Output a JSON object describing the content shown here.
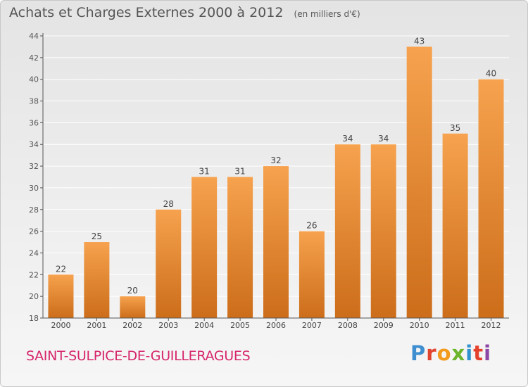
{
  "title": "Achats et Charges Externes 2000 à 2012",
  "unit": "(en milliers d'€)",
  "commune": "SAINT-SULPICE-DE-GUILLERAGUES",
  "brand": "Proxiti",
  "colors": {
    "bar_light": "#f6a24e",
    "bar_dark": "#cc6d1a",
    "grid": "#ffffff",
    "axis": "#555555",
    "commune_text": "#d6256a"
  },
  "chart_data": {
    "type": "bar",
    "categories": [
      "2000",
      "2001",
      "2002",
      "2003",
      "2004",
      "2005",
      "2006",
      "2007",
      "2008",
      "2009",
      "2010",
      "2011",
      "2012"
    ],
    "values": [
      22,
      25,
      20,
      28,
      31,
      31,
      32,
      26,
      34,
      34,
      43,
      35,
      40
    ],
    "ylim": [
      18,
      44
    ],
    "yticks": [
      18,
      20,
      22,
      24,
      26,
      28,
      30,
      32,
      34,
      36,
      38,
      40,
      42,
      44
    ],
    "grid": true,
    "data_labels": true
  }
}
